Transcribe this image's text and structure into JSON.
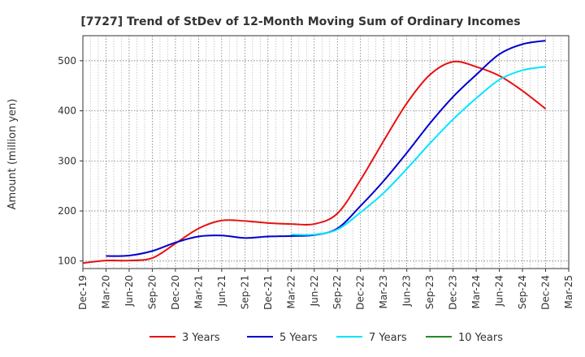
{
  "chart_data": {
    "type": "line",
    "title": "[7727]  Trend of StDev of 12-Month Moving Sum of Ordinary Incomes",
    "xlabel": "",
    "ylabel": "Amount (million yen)",
    "ylim": [
      85,
      550
    ],
    "yticks": [
      100,
      200,
      300,
      400,
      500
    ],
    "grid": true,
    "legend_position": "bottom",
    "categories": [
      "Dec-19",
      "Mar-20",
      "Jun-20",
      "Sep-20",
      "Dec-20",
      "Mar-21",
      "Jun-21",
      "Sep-21",
      "Dec-21",
      "Mar-22",
      "Jun-22",
      "Sep-22",
      "Dec-22",
      "Mar-23",
      "Jun-23",
      "Sep-23",
      "Dec-23",
      "Mar-24",
      "Jun-24",
      "Sep-24",
      "Dec-24",
      "Mar-25"
    ],
    "series": [
      {
        "name": "3 Years",
        "color": "#e81010",
        "values": [
          96,
          101,
          101,
          106,
          135,
          165,
          181,
          180,
          176,
          174,
          174,
          195,
          262,
          340,
          415,
          472,
          498,
          488,
          470,
          440,
          404,
          null
        ]
      },
      {
        "name": "5 Years",
        "color": "#0000cc",
        "values": [
          null,
          110,
          111,
          120,
          137,
          149,
          151,
          146,
          149,
          150,
          152,
          165,
          210,
          260,
          316,
          375,
          428,
          472,
          513,
          533,
          540,
          null
        ]
      },
      {
        "name": "7 Years",
        "color": "#00e5ff",
        "values": [
          null,
          null,
          null,
          null,
          null,
          null,
          null,
          null,
          null,
          153,
          153,
          163,
          197,
          236,
          284,
          335,
          383,
          425,
          462,
          481,
          488,
          null
        ]
      },
      {
        "name": "10 Years",
        "color": "#228b22",
        "values": [
          null,
          null,
          null,
          null,
          null,
          null,
          null,
          null,
          null,
          null,
          null,
          null,
          null,
          null,
          null,
          null,
          null,
          null,
          null,
          null,
          null,
          null
        ]
      }
    ]
  }
}
